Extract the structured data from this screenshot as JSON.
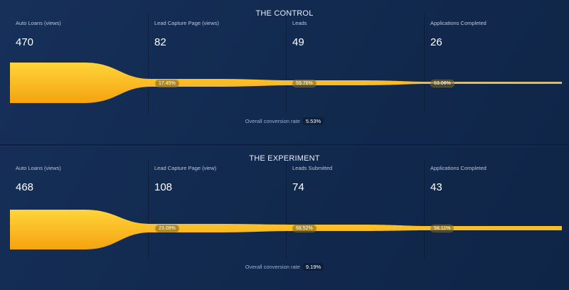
{
  "panels": [
    {
      "title": "THE CONTROL",
      "stages": [
        {
          "label": "Auto Loans (views)",
          "value": "470"
        },
        {
          "label": "Lead Capture Page (views)",
          "value": "82"
        },
        {
          "label": "Leads",
          "value": "49"
        },
        {
          "label": "Applications Completed",
          "value": "26"
        }
      ],
      "step_rates": [
        "17.45%",
        "59.76%",
        "53.06%"
      ],
      "overall_label": "Overall conversion rate",
      "overall_value": "5.53%"
    },
    {
      "title": "THE EXPERIMENT",
      "stages": [
        {
          "label": "Auto Loans (views)",
          "value": "468"
        },
        {
          "label": "Lead Capture Page (view)",
          "value": "108"
        },
        {
          "label": "Leads Submitted",
          "value": "74"
        },
        {
          "label": "Applications Completed",
          "value": "43"
        }
      ],
      "step_rates": [
        "23.08%",
        "68.52%",
        "58.11%"
      ],
      "overall_label": "Overall conversion rate",
      "overall_value": "9.19%"
    }
  ],
  "colors": {
    "funnel_top": "#ffd43b",
    "funnel_bottom": "#f5a30f",
    "background": "#14305a"
  }
}
